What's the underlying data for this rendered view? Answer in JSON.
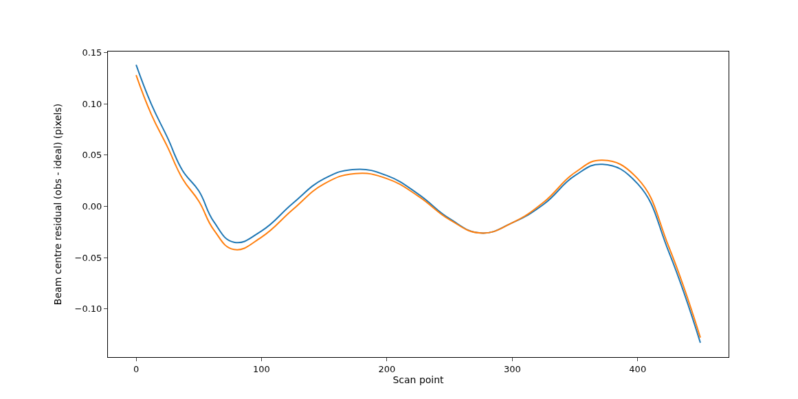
{
  "chart_data": {
    "type": "line",
    "xlabel": "Scan point",
    "ylabel": "Beam centre residual (obs - ideal) (pixels)",
    "x": [
      0,
      12,
      25,
      37,
      50,
      62,
      78,
      100,
      125,
      150,
      175,
      200,
      225,
      250,
      275,
      300,
      325,
      350,
      372,
      400,
      425,
      450
    ],
    "series": [
      {
        "color": "#1f77b4",
        "values": [
          0.138,
          0.1,
          0.067,
          0.035,
          0.015,
          -0.015,
          -0.035,
          -0.024,
          0.003,
          0.027,
          0.036,
          0.03,
          0.012,
          -0.012,
          -0.026,
          -0.016,
          0.002,
          0.03,
          0.041,
          0.022,
          -0.045,
          -0.133
        ]
      },
      {
        "color": "#ff7f0e",
        "values": [
          0.128,
          0.09,
          0.058,
          0.027,
          0.005,
          -0.023,
          -0.042,
          -0.03,
          -0.003,
          0.022,
          0.032,
          0.027,
          0.01,
          -0.013,
          -0.026,
          -0.016,
          0.004,
          0.033,
          0.045,
          0.027,
          -0.04,
          -0.128
        ]
      }
    ],
    "xlim": [
      -22.5,
      472.5
    ],
    "ylim": [
      -0.147,
      0.151
    ],
    "xticks": [
      0,
      100,
      200,
      300,
      400
    ],
    "yticks": [
      {
        "value": -0.1,
        "label": "−0.10"
      },
      {
        "value": -0.05,
        "label": "−0.05"
      },
      {
        "value": 0,
        "label": "0.00"
      },
      {
        "value": 0.05,
        "label": "0.05"
      },
      {
        "value": 0.1,
        "label": "0.10"
      },
      {
        "value": 0.15,
        "label": "0.15"
      }
    ],
    "marker": "none"
  }
}
